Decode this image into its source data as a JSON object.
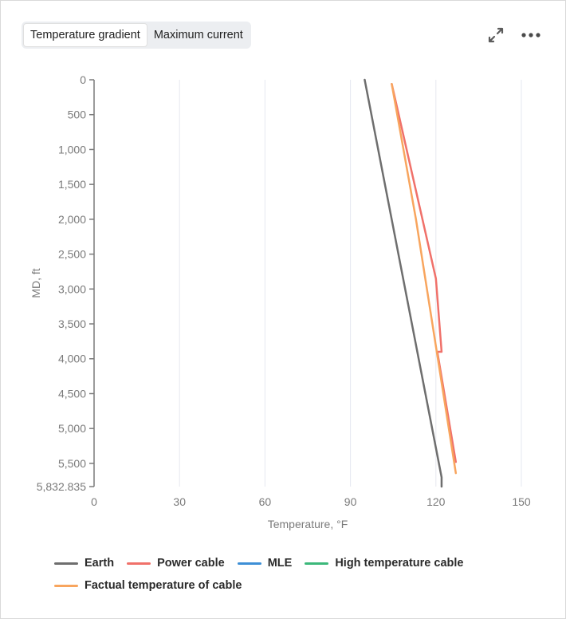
{
  "tabs": [
    {
      "label": "Temperature gradient",
      "active": true
    },
    {
      "label": "Maximum current",
      "active": false
    }
  ],
  "toolbar": {
    "expand_icon": "expand-icon",
    "more_icon": "more-horizontal-icon"
  },
  "colors": {
    "earth": "#6e6e6e",
    "power_cable": "#f0716a",
    "mle": "#3d8fd6",
    "high_temperature_cable": "#3cb87a",
    "factual_temperature": "#f8a55e",
    "grid": "#e6e8f0",
    "axis": "#7a7a7a"
  },
  "chart_data": {
    "type": "line",
    "xlabel": "Temperature, °F",
    "ylabel": "MD, ft",
    "xlim": [
      0,
      150
    ],
    "ylim": [
      0,
      5832.835
    ],
    "y_inverted": true,
    "x_ticks": [
      "0",
      "30",
      "60",
      "90",
      "120",
      "150"
    ],
    "y_ticks": [
      "0",
      "500",
      "1,000",
      "1,500",
      "2,000",
      "2,500",
      "3,000",
      "3,500",
      "4,000",
      "4,500",
      "5,000",
      "5,500",
      "5,832.835"
    ],
    "grid": "vertical",
    "legend_position": "bottom",
    "series": [
      {
        "name": "Earth",
        "color_key": "earth",
        "x": [
          95,
          122,
          122
        ],
        "y": [
          0,
          5700,
          5832.835
        ]
      },
      {
        "name": "Power cable",
        "color_key": "power_cable",
        "x": [
          104.5,
          120,
          122,
          120.5,
          127
        ],
        "y": [
          60,
          2850,
          3900,
          3900,
          5480
        ]
      },
      {
        "name": "MLE",
        "color_key": "mle",
        "x": [],
        "y": []
      },
      {
        "name": "High temperature cable",
        "color_key": "high_temperature_cable",
        "x": [],
        "y": []
      },
      {
        "name": "Factual temperature of cable",
        "color_key": "factual_temperature",
        "x": [
          104.5,
          113,
          127
        ],
        "y": [
          60,
          2000,
          5640
        ]
      }
    ]
  }
}
